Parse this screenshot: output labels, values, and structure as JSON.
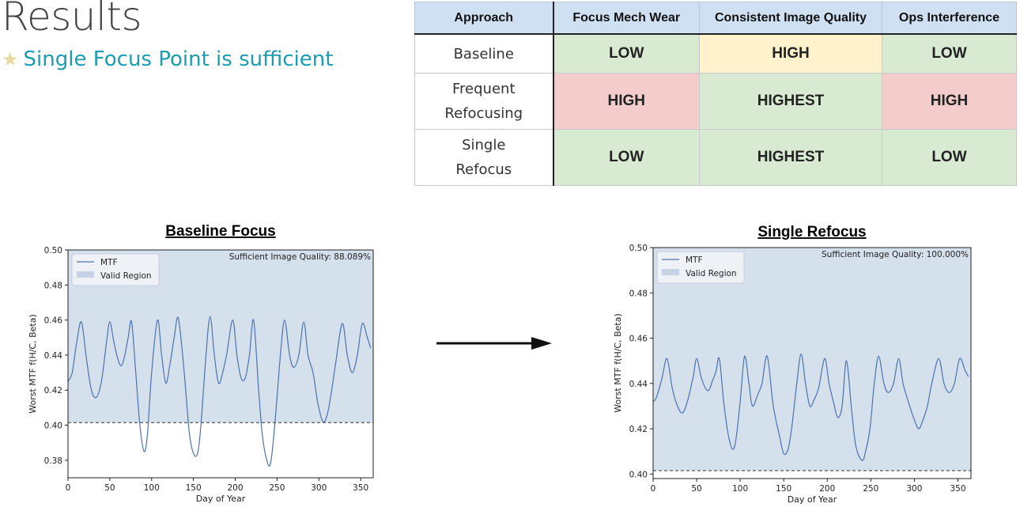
{
  "slide": {
    "title": "Results",
    "bullet": "Single Focus Point is sufficient",
    "bullet_icon": "star-icon"
  },
  "table": {
    "headers": [
      "Approach",
      "Focus Mech Wear",
      "Consistent Image Quality",
      "Ops Interference"
    ],
    "rows": [
      {
        "approach": [
          "Baseline"
        ],
        "cells": [
          "LOW",
          "HIGH",
          "LOW"
        ],
        "colors": [
          "#d9ead3",
          "#fff2cc",
          "#d9ead3"
        ]
      },
      {
        "approach": [
          "Frequent",
          "Refocusing"
        ],
        "cells": [
          "HIGH",
          "HIGHEST",
          "HIGH"
        ],
        "colors": [
          "#f4cccc",
          "#d9ead3",
          "#f4cccc"
        ]
      },
      {
        "approach": [
          "Single",
          "Refocus"
        ],
        "cells": [
          "LOW",
          "HIGHEST",
          "LOW"
        ],
        "colors": [
          "#d9ead3",
          "#d9ead3",
          "#d9ead3"
        ]
      }
    ]
  },
  "chart_data": [
    {
      "type": "line",
      "title": "Baseline Focus",
      "xlabel": "Day of Year",
      "ylabel": "Worst MTF f(H/C, Beta)",
      "xlim": [
        0,
        365
      ],
      "ylim": [
        0.37,
        0.5
      ],
      "xticks": [
        0,
        50,
        100,
        150,
        200,
        250,
        300,
        350
      ],
      "yticks": [
        0.38,
        0.4,
        0.42,
        0.44,
        0.46,
        0.48,
        0.5
      ],
      "threshold": 0.4015,
      "valid_region": [
        0.4015,
        0.5
      ],
      "annotation": "Sufficient Image Quality: 88.089%",
      "legend": [
        "MTF",
        "Valid Region"
      ],
      "legend_position": "top-left",
      "series": [
        {
          "name": "MTF",
          "color": "#4c72b0",
          "x": [
            0,
            5,
            10,
            16,
            22,
            28,
            34,
            40,
            46,
            50,
            55,
            60,
            64,
            68,
            72,
            76,
            81,
            86,
            91,
            95,
            100,
            107,
            112,
            117,
            122,
            127,
            132,
            139,
            145,
            150,
            155,
            159,
            165,
            170,
            175,
            180,
            185,
            190,
            197,
            202,
            207,
            212,
            217,
            222,
            228,
            233,
            240,
            244,
            249,
            254,
            259,
            265,
            270,
            276,
            282,
            287,
            293,
            299,
            305,
            310,
            315,
            320,
            328,
            334,
            340,
            346,
            352,
            358,
            362
          ],
          "y": [
            0.425,
            0.43,
            0.446,
            0.459,
            0.438,
            0.42,
            0.416,
            0.425,
            0.447,
            0.459,
            0.447,
            0.437,
            0.434,
            0.44,
            0.45,
            0.459,
            0.43,
            0.4,
            0.385,
            0.395,
            0.43,
            0.46,
            0.44,
            0.424,
            0.435,
            0.45,
            0.461,
            0.43,
            0.396,
            0.384,
            0.384,
            0.4,
            0.44,
            0.462,
            0.44,
            0.424,
            0.43,
            0.441,
            0.46,
            0.44,
            0.427,
            0.427,
            0.44,
            0.46,
            0.42,
            0.392,
            0.377,
            0.384,
            0.41,
            0.44,
            0.46,
            0.44,
            0.433,
            0.44,
            0.459,
            0.44,
            0.43,
            0.412,
            0.402,
            0.406,
            0.419,
            0.435,
            0.458,
            0.44,
            0.43,
            0.44,
            0.458,
            0.45,
            0.444
          ]
        }
      ]
    },
    {
      "type": "line",
      "title": "Single Refocus",
      "xlabel": "Day of Year",
      "ylabel": "Worst MTF f(H/C, Beta)",
      "xlim": [
        0,
        365
      ],
      "ylim": [
        0.398,
        0.5
      ],
      "xticks": [
        0,
        50,
        100,
        150,
        200,
        250,
        300,
        350
      ],
      "yticks": [
        0.4,
        0.42,
        0.44,
        0.46,
        0.48,
        0.5
      ],
      "threshold": 0.4015,
      "valid_region": [
        0.4015,
        0.5
      ],
      "annotation": "Sufficient Image Quality: 100.000%",
      "legend": [
        "MTF",
        "Valid Region"
      ],
      "legend_position": "top-left",
      "series": [
        {
          "name": "MTF",
          "color": "#4c72b0",
          "x": [
            0,
            4,
            10,
            16,
            22,
            28,
            34,
            40,
            46,
            50,
            55,
            60,
            64,
            68,
            72,
            76,
            81,
            86,
            91,
            95,
            100,
            105,
            110,
            114,
            120,
            125,
            131,
            138,
            145,
            150,
            155,
            159,
            165,
            170,
            175,
            180,
            185,
            190,
            197,
            202,
            207,
            212,
            217,
            222,
            228,
            233,
            240,
            244,
            249,
            254,
            259,
            265,
            270,
            276,
            282,
            287,
            293,
            299,
            305,
            310,
            315,
            320,
            328,
            334,
            340,
            346,
            352,
            358,
            362
          ],
          "y": [
            0.432,
            0.434,
            0.442,
            0.451,
            0.438,
            0.43,
            0.427,
            0.433,
            0.443,
            0.451,
            0.443,
            0.438,
            0.437,
            0.441,
            0.445,
            0.451,
            0.432,
            0.418,
            0.411,
            0.415,
            0.432,
            0.452,
            0.44,
            0.43,
            0.435,
            0.44,
            0.452,
            0.43,
            0.417,
            0.409,
            0.411,
            0.42,
            0.44,
            0.453,
            0.44,
            0.43,
            0.433,
            0.438,
            0.451,
            0.44,
            0.432,
            0.425,
            0.43,
            0.45,
            0.428,
            0.412,
            0.406,
            0.41,
            0.42,
            0.44,
            0.452,
            0.44,
            0.436,
            0.44,
            0.451,
            0.44,
            0.432,
            0.425,
            0.42,
            0.424,
            0.43,
            0.44,
            0.451,
            0.44,
            0.436,
            0.44,
            0.451,
            0.446,
            0.443
          ]
        }
      ]
    }
  ]
}
